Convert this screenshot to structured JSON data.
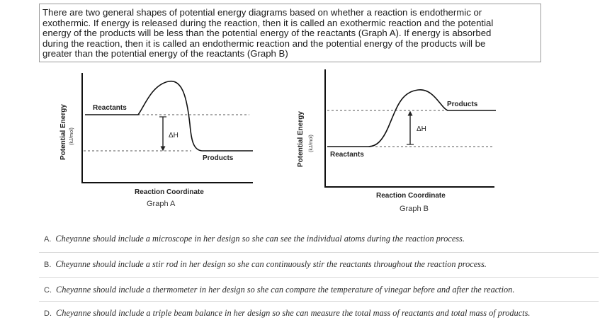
{
  "passage": {
    "lines": [
      "There are two general shapes of potential energy diagrams based on whether a reaction is endothermic or",
      "exothermic. If energy is released during the reaction, then it is called an exothermic  reaction and the potential",
      " energy of the products will be less than the potential energy of the reactants (Graph A). If energy is absorbed",
      "during the reaction, then it is called an endothermic  reaction and the potential energy of the products will be",
      "greater than the potential energy of the reactants (Graph B)"
    ]
  },
  "graph_a": {
    "y_axis_label": "Potential Energy",
    "y_axis_unit": "(kJ/mol)",
    "reactants_label": "Reactants",
    "products_label": "Products",
    "delta_h_label": "ΔH",
    "x_axis_label": "Reaction Coordinate",
    "caption": "Graph A"
  },
  "graph_b": {
    "y_axis_label": "Potential Energy",
    "y_axis_unit": "(kJ/mol)",
    "reactants_label": "Reactants",
    "products_label": "Products",
    "delta_h_label": "ΔH",
    "x_axis_label": "Reaction Coordinate",
    "caption": "Graph B"
  },
  "choices": [
    {
      "letter": "A.",
      "text": "Cheyanne should include a microscope in her design so she can see the individual atoms during the reaction process."
    },
    {
      "letter": "B.",
      "text": "Cheyanne should include a stir rod in her design so she can continuously stir the reactants throughout the reaction process."
    },
    {
      "letter": "C.",
      "text": "Cheyanne should include a thermometer in her design so she can compare the temperature of vinegar before and after the reaction."
    },
    {
      "letter": "D.",
      "text": "Cheyanne should include a triple beam balance in her design so she can measure the total mass of reactants and total mass of products."
    }
  ]
}
